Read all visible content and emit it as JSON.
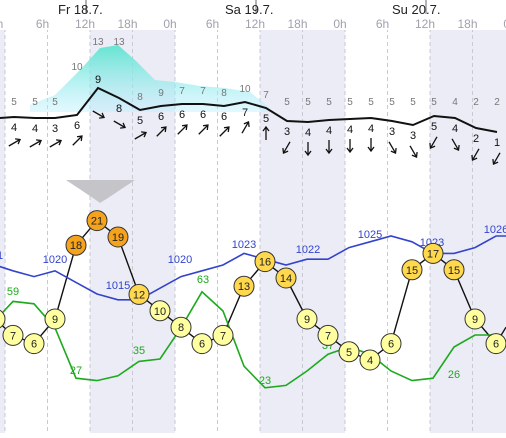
{
  "chart_data": {
    "type": "line",
    "days": [
      "Fr 18.7.",
      "Sa 19.7.",
      "Su 20.7."
    ],
    "hour_ticks": [
      "h",
      "6h",
      "12h",
      "18h",
      "0h",
      "6h",
      "12h",
      "18h",
      "0h",
      "6h",
      "12h",
      "18h",
      "0h",
      "6h",
      "12h",
      "18h",
      "h"
    ],
    "wind": {
      "speed_line": [
        4,
        4,
        3,
        6,
        9,
        8,
        5,
        6,
        6,
        6,
        6,
        7,
        5,
        3,
        4,
        4,
        4,
        4,
        3,
        3,
        5,
        4,
        2,
        1
      ],
      "speed_labels": [
        4,
        4,
        3,
        6,
        9,
        8,
        5,
        6,
        6,
        6,
        6,
        7,
        5,
        3,
        4,
        4,
        4,
        4,
        3,
        3,
        5,
        4,
        2,
        1
      ],
      "gust_labels": [
        5,
        5,
        5,
        10,
        13,
        13,
        8,
        9,
        7,
        7,
        8,
        10,
        7,
        5,
        5,
        5,
        5,
        5,
        5,
        5,
        5,
        4,
        2,
        2
      ],
      "directions_deg": [
        60,
        60,
        60,
        45,
        120,
        120,
        60,
        45,
        45,
        45,
        45,
        30,
        0,
        210,
        180,
        180,
        180,
        180,
        150,
        150,
        210,
        150,
        210,
        210
      ]
    },
    "temperature": {
      "values": [
        9,
        7,
        6,
        9,
        18,
        21,
        19,
        12,
        10,
        8,
        6,
        7,
        13,
        16,
        14,
        9,
        7,
        5,
        4,
        6,
        15,
        17,
        15,
        9,
        6,
        8
      ],
      "labels_shown": [
        9,
        7,
        6,
        9,
        18,
        21,
        19,
        12,
        10,
        8,
        6,
        7,
        13,
        16,
        14,
        9,
        7,
        5,
        4,
        6,
        15,
        17,
        15,
        9,
        6
      ]
    },
    "pressure": {
      "values": [
        1021,
        1020,
        1019,
        1020,
        1018,
        1016,
        1015,
        1015,
        1017,
        1019,
        1020,
        1021,
        1023,
        1022,
        1021,
        1022,
        1022,
        1024,
        1025,
        1026,
        1025,
        1023,
        1023,
        1024,
        1026,
        1026
      ],
      "labels": [
        "1020",
        "1015",
        "1020",
        "1023",
        "1022",
        "1025",
        "1023",
        "1026",
        "1"
      ]
    },
    "dewpoint": {
      "values": [
        51,
        59,
        58,
        48,
        27,
        26,
        28,
        34,
        35,
        48,
        63,
        55,
        32,
        23,
        24,
        30,
        37,
        40,
        37,
        30,
        26,
        27,
        40,
        45,
        45
      ],
      "labels": [
        "59",
        "27",
        "35",
        "63",
        "23",
        "37",
        "26"
      ]
    }
  }
}
